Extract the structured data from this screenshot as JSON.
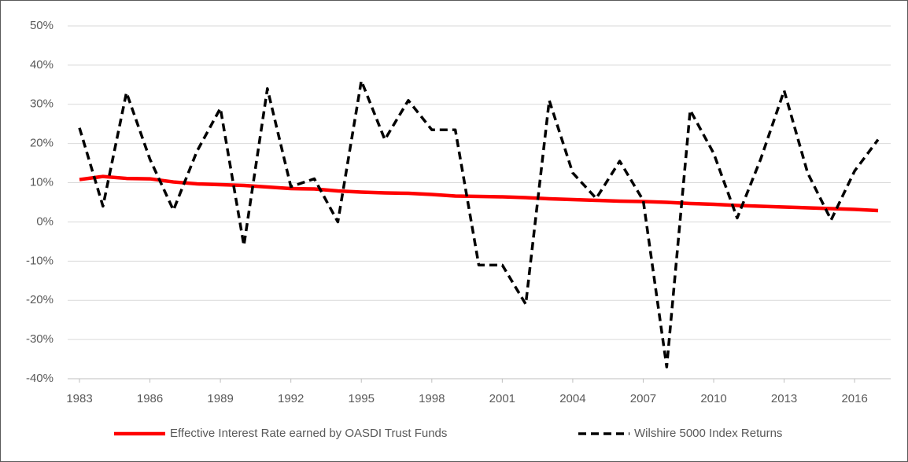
{
  "chart_data": {
    "type": "line",
    "x": [
      1983,
      1984,
      1985,
      1986,
      1987,
      1988,
      1989,
      1990,
      1991,
      1992,
      1993,
      1994,
      1995,
      1996,
      1997,
      1998,
      1999,
      2000,
      2001,
      2002,
      2003,
      2004,
      2005,
      2006,
      2007,
      2008,
      2009,
      2010,
      2011,
      2012,
      2013,
      2014,
      2015,
      2016,
      2017
    ],
    "series": [
      {
        "name": "Effective Interest Rate earned by OASDI Trust Funds",
        "color": "#ff0000",
        "dashed": false,
        "values": [
          10.8,
          11.6,
          11.1,
          11.0,
          10.2,
          9.7,
          9.5,
          9.3,
          8.9,
          8.5,
          8.4,
          7.9,
          7.6,
          7.4,
          7.3,
          7.0,
          6.6,
          6.5,
          6.4,
          6.2,
          5.9,
          5.7,
          5.5,
          5.3,
          5.2,
          5.0,
          4.7,
          4.5,
          4.2,
          4.0,
          3.8,
          3.6,
          3.4,
          3.2,
          2.9
        ]
      },
      {
        "name": "Wilshire 5000 Index Returns",
        "color": "#000000",
        "dashed": true,
        "values": [
          24,
          4,
          33,
          16,
          3,
          18,
          29,
          -6,
          34,
          9,
          11,
          0,
          36,
          21,
          31,
          23.5,
          23.5,
          -11,
          -11,
          -21,
          31,
          12.5,
          6,
          15.5,
          5.5,
          -37,
          28.5,
          17.5,
          1,
          16,
          33.5,
          12.5,
          0.5,
          13,
          21
        ]
      }
    ],
    "xlim": [
      1983,
      2017
    ],
    "xticks": [
      1983,
      1986,
      1989,
      1992,
      1995,
      1998,
      2001,
      2004,
      2007,
      2010,
      2013,
      2016
    ],
    "ylim": [
      -40,
      50
    ],
    "yticks": [
      {
        "value": -40,
        "label": "-40%"
      },
      {
        "value": -30,
        "label": "-30%"
      },
      {
        "value": -20,
        "label": "-20%"
      },
      {
        "value": -10,
        "label": "-10%"
      },
      {
        "value": 0,
        "label": "0%"
      },
      {
        "value": 10,
        "label": "10%"
      },
      {
        "value": 20,
        "label": "20%"
      },
      {
        "value": 30,
        "label": "30%"
      },
      {
        "value": 40,
        "label": "40%"
      },
      {
        "value": 50,
        "label": "50%"
      }
    ],
    "grid": true,
    "legend": "bottom"
  }
}
